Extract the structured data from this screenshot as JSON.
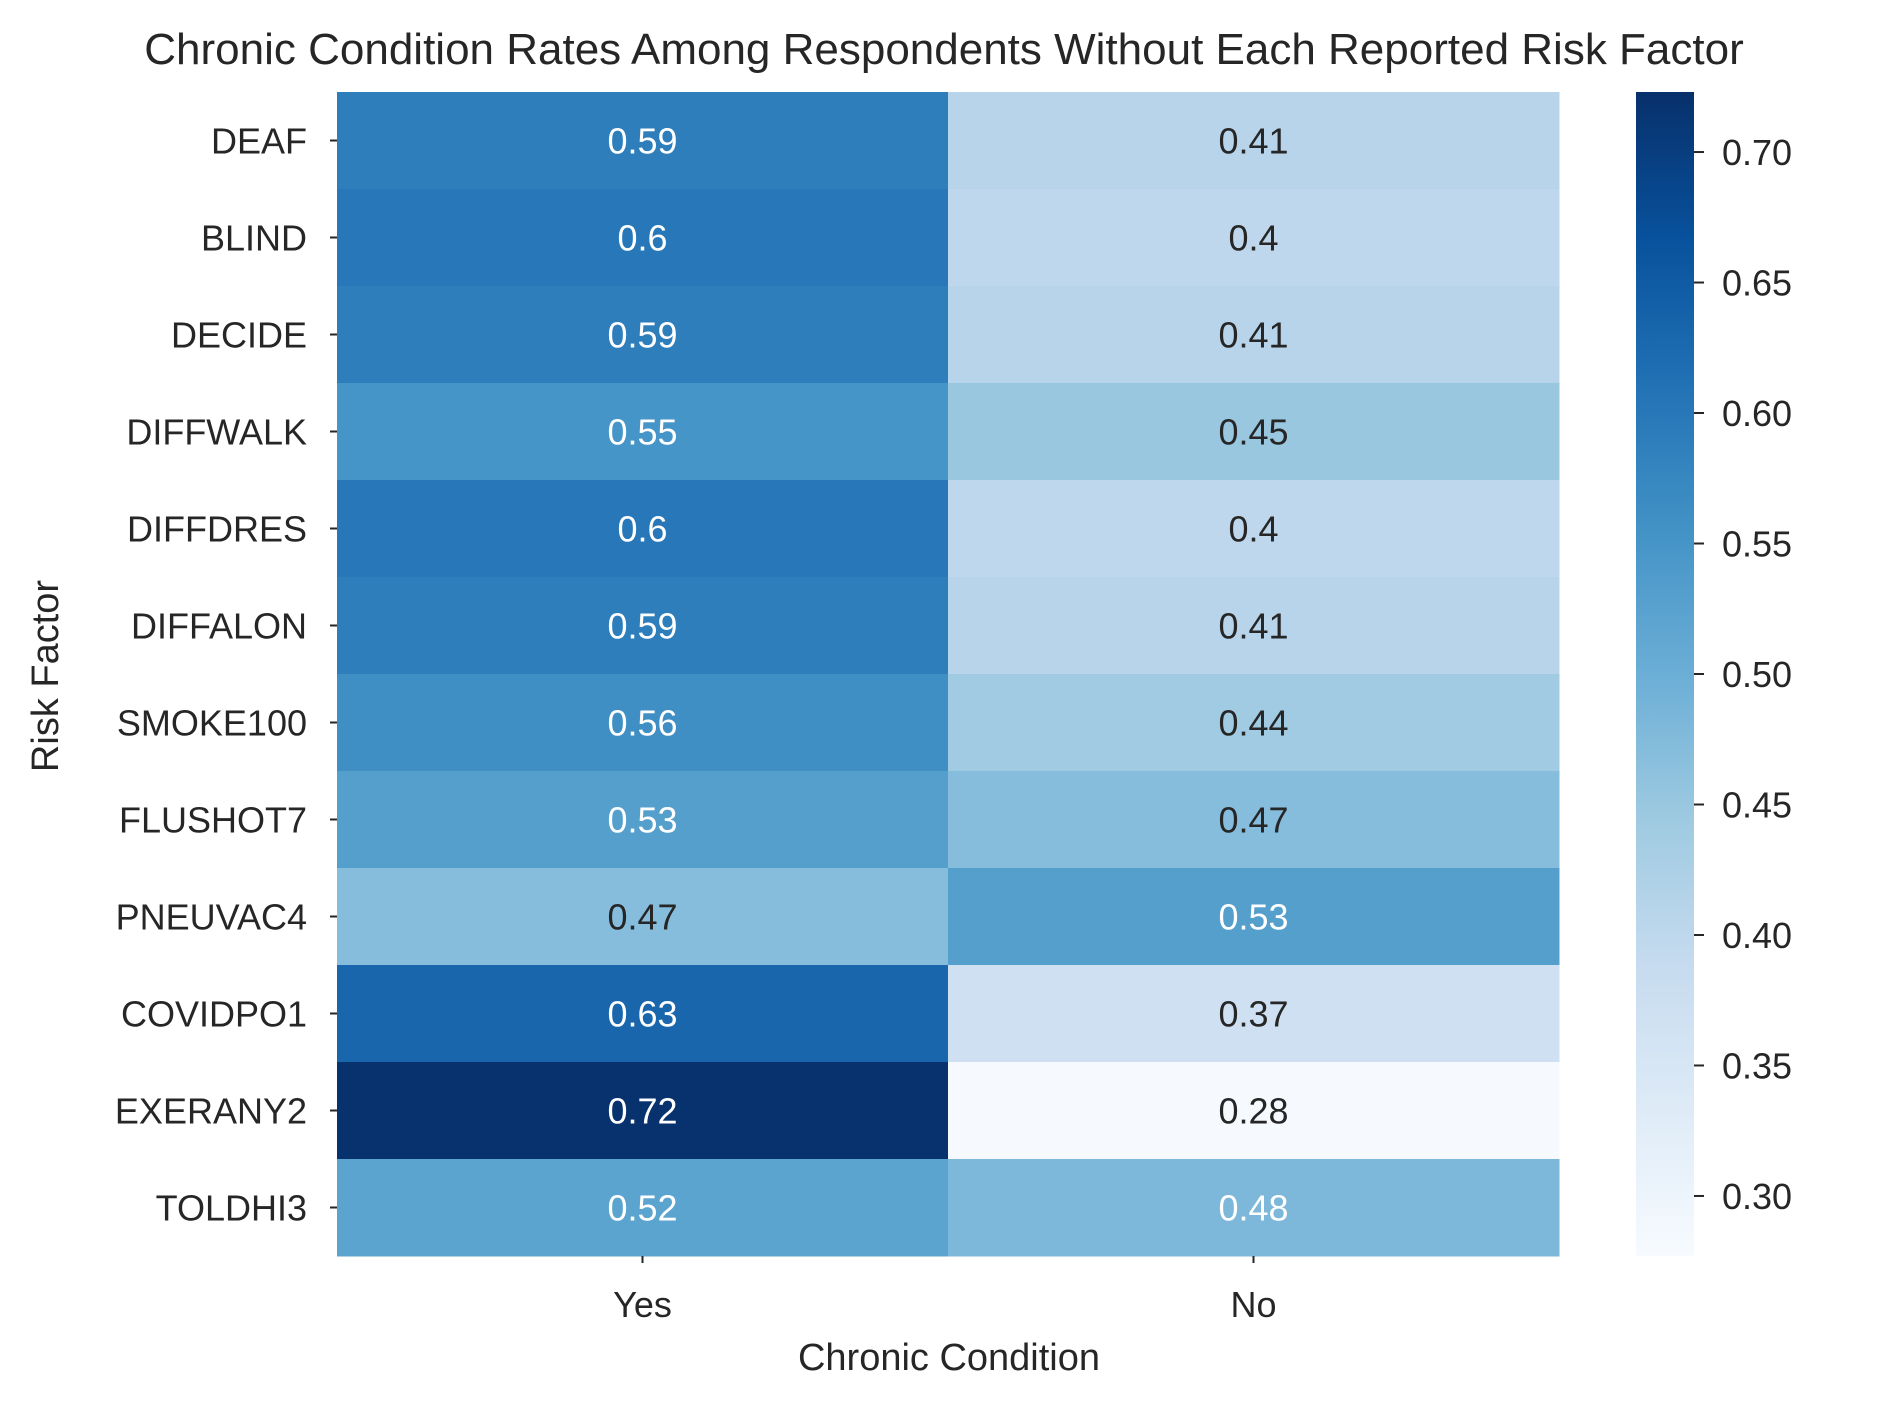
{
  "chart_data": {
    "type": "heatmap",
    "title": "Chronic Condition Rates Among Respondents Without Each Reported Risk Factor",
    "xlabel": "Chronic Condition",
    "ylabel": "Risk Factor",
    "columns": [
      "Yes",
      "No"
    ],
    "rows": [
      "DEAF",
      "BLIND",
      "DECIDE",
      "DIFFWALK",
      "DIFFDRES",
      "DIFFALON",
      "SMOKE100",
      "FLUSHOT7",
      "PNEUVAC4",
      "COVIDPO1",
      "EXERANY2",
      "TOLDHI3"
    ],
    "values": [
      [
        0.59,
        0.41
      ],
      [
        0.6,
        0.4
      ],
      [
        0.59,
        0.41
      ],
      [
        0.55,
        0.45
      ],
      [
        0.6,
        0.4
      ],
      [
        0.59,
        0.41
      ],
      [
        0.56,
        0.44
      ],
      [
        0.53,
        0.47
      ],
      [
        0.47,
        0.53
      ],
      [
        0.63,
        0.37
      ],
      [
        0.72,
        0.28
      ],
      [
        0.52,
        0.48
      ]
    ],
    "labels": [
      [
        "0.59",
        "0.41"
      ],
      [
        "0.6",
        "0.4"
      ],
      [
        "0.59",
        "0.41"
      ],
      [
        "0.55",
        "0.45"
      ],
      [
        "0.6",
        "0.4"
      ],
      [
        "0.59",
        "0.41"
      ],
      [
        "0.56",
        "0.44"
      ],
      [
        "0.53",
        "0.47"
      ],
      [
        "0.47",
        "0.53"
      ],
      [
        "0.63",
        "0.37"
      ],
      [
        "0.72",
        "0.28"
      ],
      [
        "0.52",
        "0.48"
      ]
    ],
    "colorbar": {
      "colormap": "Blues",
      "vmin": 0.277,
      "vmax": 0.723,
      "ticks": [
        "0.30",
        "0.35",
        "0.40",
        "0.45",
        "0.50",
        "0.55",
        "0.60",
        "0.65",
        "0.70"
      ]
    },
    "grid": false
  }
}
